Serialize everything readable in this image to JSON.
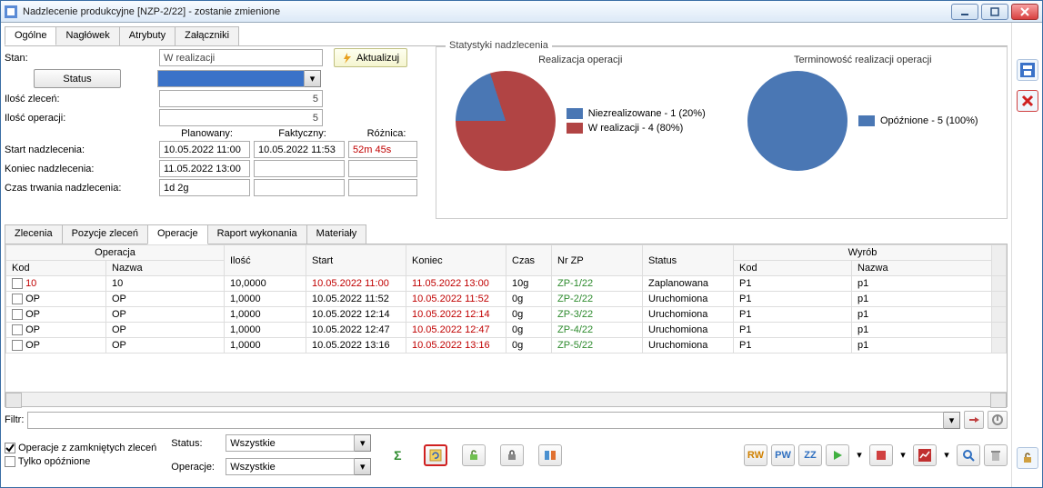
{
  "window": {
    "title": "Nadzlecenie produkcyjne [NZP-2/22] - zostanie zmienione"
  },
  "mainTabs": {
    "items": [
      "Ogólne",
      "Nagłówek",
      "Atrybuty",
      "Załączniki"
    ],
    "active": 0
  },
  "form": {
    "stan_label": "Stan:",
    "stan_value": "W realizacji",
    "status_button": "Status",
    "ilosc_zlecen_label": "Ilość zleceń:",
    "ilosc_zlecen_value": "5",
    "ilosc_operacji_label": "Ilość operacji:",
    "ilosc_operacji_value": "5",
    "col_planowany": "Planowany:",
    "col_faktyczny": "Faktyczny:",
    "col_roznica": "Różnica:",
    "start_label": "Start nadzlecenia:",
    "start_plan": "10.05.2022 11:00",
    "start_fakt": "10.05.2022 11:53",
    "start_diff": "52m 45s",
    "koniec_label": "Koniec nadzlecenia:",
    "koniec_plan": "11.05.2022 13:00",
    "koniec_fakt": "",
    "koniec_diff": "",
    "czas_label": "Czas trwania nadzlecenia:",
    "czas_plan": "1d 2g",
    "czas_fakt": "",
    "czas_diff": "",
    "aktualizuj": "Aktualizuj"
  },
  "stats": {
    "box_title": "Statystyki nadzlecenia",
    "chart1": {
      "title": "Realizacja operacji",
      "type": "pie",
      "slices": [
        {
          "label": "Niezrealizowane - 1 (20%)",
          "value": 20,
          "color": "#4a77b4"
        },
        {
          "label": "W realizacji - 4 (80%)",
          "value": 80,
          "color": "#b14444"
        }
      ],
      "background": "#ffffff"
    },
    "chart2": {
      "title": "Terminowość realizacji operacji",
      "type": "pie",
      "slices": [
        {
          "label": "Opóźnione - 5 (100%)",
          "value": 100,
          "color": "#4a77b4"
        }
      ],
      "background": "#ffffff"
    }
  },
  "subTabs": {
    "items": [
      "Zlecenia",
      "Pozycje zleceń",
      "Operacje",
      "Raport wykonania",
      "Materiały"
    ],
    "active": 2
  },
  "grid": {
    "group_operacja": "Operacja",
    "group_wyrob": "Wyrób",
    "columns": [
      "Kod",
      "Nazwa",
      "Ilość",
      "Start",
      "Koniec",
      "Czas",
      "Nr ZP",
      "Status",
      "Kod",
      "Nazwa"
    ],
    "col_widths": [
      "110",
      "130",
      "90",
      "110",
      "110",
      "50",
      "100",
      "100",
      "130",
      "auto"
    ],
    "rows": [
      {
        "kod": "10",
        "kod_red": true,
        "nazwa": "10",
        "ilosc": "10,0000",
        "start": "10.05.2022 11:00",
        "start_red": true,
        "koniec": "11.05.2022 13:00",
        "koniec_red": true,
        "czas": "10g",
        "nrzp": "ZP-1/22",
        "status": "Zaplanowana",
        "wkod": "P1",
        "wnazwa": "p1"
      },
      {
        "kod": "OP",
        "kod_red": false,
        "nazwa": "OP",
        "ilosc": "1,0000",
        "start": "10.05.2022 11:52",
        "start_red": false,
        "koniec": "10.05.2022 11:52",
        "koniec_red": true,
        "czas": "0g",
        "nrzp": "ZP-2/22",
        "status": "Uruchomiona",
        "wkod": "P1",
        "wnazwa": "p1"
      },
      {
        "kod": "OP",
        "kod_red": false,
        "nazwa": "OP",
        "ilosc": "1,0000",
        "start": "10.05.2022 12:14",
        "start_red": false,
        "koniec": "10.05.2022 12:14",
        "koniec_red": true,
        "czas": "0g",
        "nrzp": "ZP-3/22",
        "status": "Uruchomiona",
        "wkod": "P1",
        "wnazwa": "p1"
      },
      {
        "kod": "OP",
        "kod_red": false,
        "nazwa": "OP",
        "ilosc": "1,0000",
        "start": "10.05.2022 12:47",
        "start_red": false,
        "koniec": "10.05.2022 12:47",
        "koniec_red": true,
        "czas": "0g",
        "nrzp": "ZP-4/22",
        "status": "Uruchomiona",
        "wkod": "P1",
        "wnazwa": "p1"
      },
      {
        "kod": "OP",
        "kod_red": false,
        "nazwa": "OP",
        "ilosc": "1,0000",
        "start": "10.05.2022 13:16",
        "start_red": false,
        "koniec": "10.05.2022 13:16",
        "koniec_red": true,
        "czas": "0g",
        "nrzp": "ZP-5/22",
        "status": "Uruchomiona",
        "wkod": "P1",
        "wnazwa": "p1"
      }
    ]
  },
  "filter": {
    "label": "Filtr:",
    "value": ""
  },
  "bottom": {
    "chk1_label": "Operacje z zamkniętych zleceń",
    "chk1_checked": true,
    "chk2_label": "Tylko opóźnione",
    "chk2_checked": false,
    "status_label": "Status:",
    "status_value": "Wszystkie",
    "operacje_label": "Operacje:",
    "operacje_value": "Wszystkie"
  },
  "colors": {
    "combo_selected_bg": "#3a72c8",
    "red_text": "#c00000",
    "green_text": "#2e8b2e"
  }
}
